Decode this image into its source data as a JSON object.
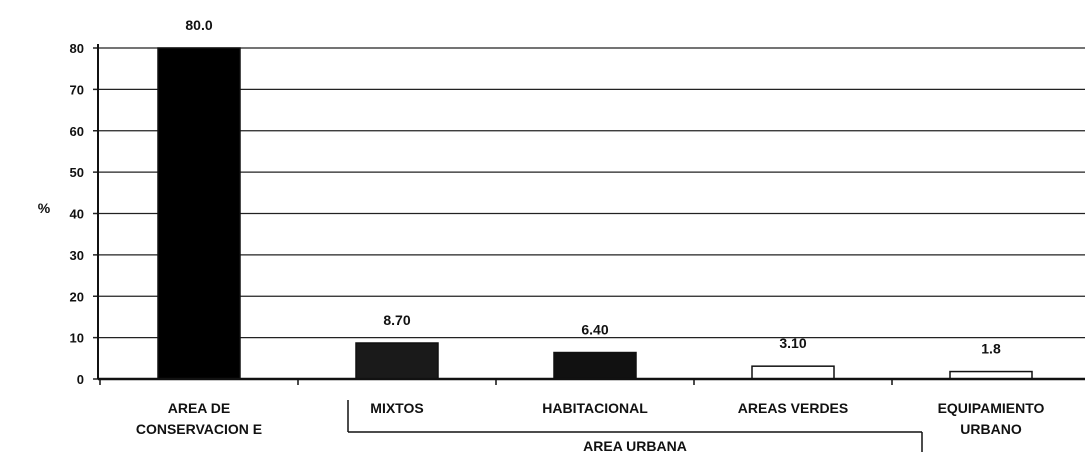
{
  "chart_data": {
    "type": "bar",
    "categories": [
      [
        "AREA DE",
        "CONSERVACION E"
      ],
      [
        "MIXTOS"
      ],
      [
        "HABITACIONAL"
      ],
      [
        "AREAS VERDES"
      ],
      [
        "EQUIPAMIENTO",
        "URBANO"
      ]
    ],
    "values": [
      80.0,
      8.7,
      6.4,
      3.1,
      1.8
    ],
    "value_labels": [
      "80.0",
      "8.70",
      "6.40",
      "3.10",
      "1.8"
    ],
    "bar_colors": [
      "#000000",
      "#1a1a1a",
      "#111111",
      "#ffffff",
      "#ffffff"
    ],
    "ylabel": "%",
    "ylim": [
      0,
      80
    ],
    "yticks": [
      0,
      10,
      20,
      30,
      40,
      50,
      60,
      70,
      80
    ],
    "grid": true,
    "group_label": "AREA URBANA",
    "group_categories": [
      1,
      2,
      3,
      4
    ]
  }
}
